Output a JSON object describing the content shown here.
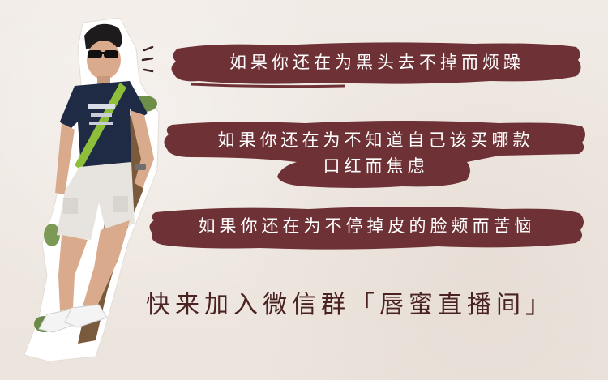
{
  "colors": {
    "background": "#efe8e2",
    "banner": "#6e3236",
    "banner_text": "#ffffff",
    "cta_text": "#4a2222"
  },
  "banners": [
    {
      "lines": [
        "如果你还在为黑头去不掉而烦躁"
      ]
    },
    {
      "lines": [
        "如果你还在为不知道自己该买哪款",
        "口红而焦虑"
      ]
    },
    {
      "lines": [
        "如果你还在为不停掉皮的脸颊而苦恼"
      ]
    }
  ],
  "cta": {
    "text": "快来加入微信群「唇蜜直播间」"
  },
  "icons": {
    "person": "person-cutout-illustration",
    "marks": "exclamation-marks-icon"
  }
}
